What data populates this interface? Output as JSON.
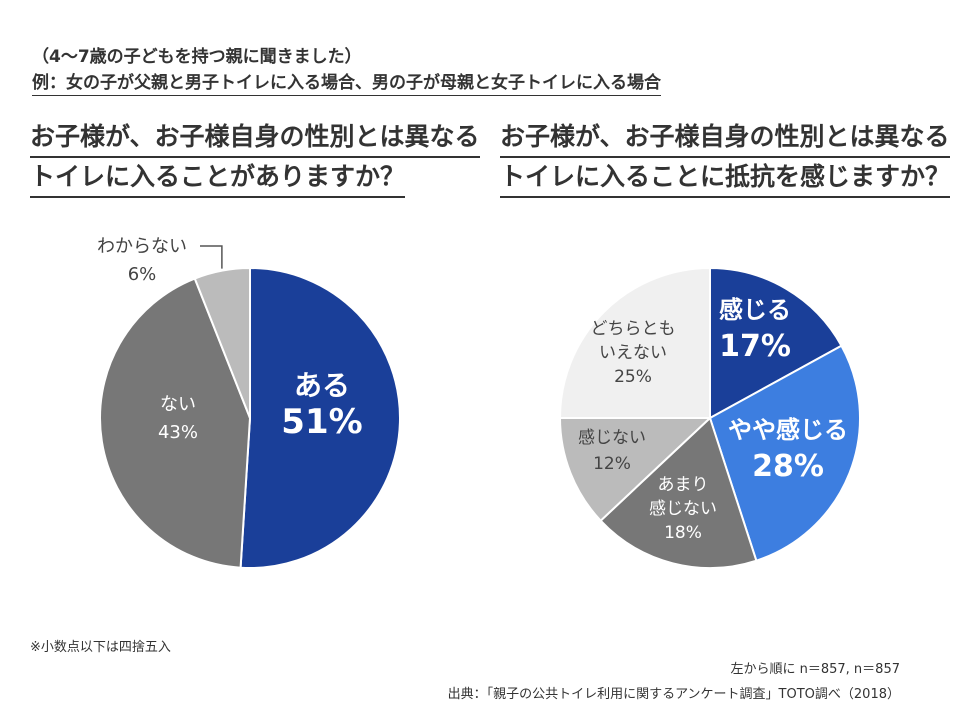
{
  "header": {
    "line1": "（4〜7歳の子どもを持つ親に聞きました）",
    "line2": "例：女の子が父親と男子トイレに入る場合、男の子が母親と女子トイレに入る場合"
  },
  "colors": {
    "navy": "#1a3f99",
    "blue": "#3d7ee0",
    "dark_gray": "#777777",
    "mid_gray": "#bbbbbb",
    "light_gray": "#f0f0f0"
  },
  "chart_data": [
    {
      "type": "pie",
      "title_line1": "お子様が、お子様自身の性別とは異なる",
      "title_line2": "トイレに入ることがありますか？",
      "slices": [
        {
          "label": "ある",
          "value": 51,
          "display": "51%",
          "color": "#1a3f99"
        },
        {
          "label": "ない",
          "value": 43,
          "display": "43%",
          "color": "#777777"
        },
        {
          "label": "わからない",
          "value": 6,
          "display": "6%",
          "color": "#bbbbbb"
        }
      ]
    },
    {
      "type": "pie",
      "title_line1": "お子様が、お子様自身の性別とは異なる",
      "title_line2": "トイレに入ることに抵抗を感じますか？",
      "slices": [
        {
          "label": "感じる",
          "value": 17,
          "display": "17%",
          "color": "#1a3f99"
        },
        {
          "label": "やや感じる",
          "value": 28,
          "display": "28%",
          "color": "#3d7ee0"
        },
        {
          "label": "あまり感じない",
          "label_lines": [
            "あまり",
            "感じない"
          ],
          "value": 18,
          "display": "18%",
          "color": "#777777"
        },
        {
          "label": "感じない",
          "value": 12,
          "display": "12%",
          "color": "#bbbbbb"
        },
        {
          "label": "どちらともいえない",
          "label_lines": [
            "どちらとも",
            "いえない"
          ],
          "value": 25,
          "display": "25%",
          "color": "#f0f0f0"
        }
      ]
    }
  ],
  "footer": {
    "rounding_note": "※小数点以下は四捨五入",
    "sample_note": "左から順に n＝857, n＝857",
    "source": "出典：「親子の公共トイレ利用に関するアンケート調査」TOTO調べ（2018）"
  }
}
